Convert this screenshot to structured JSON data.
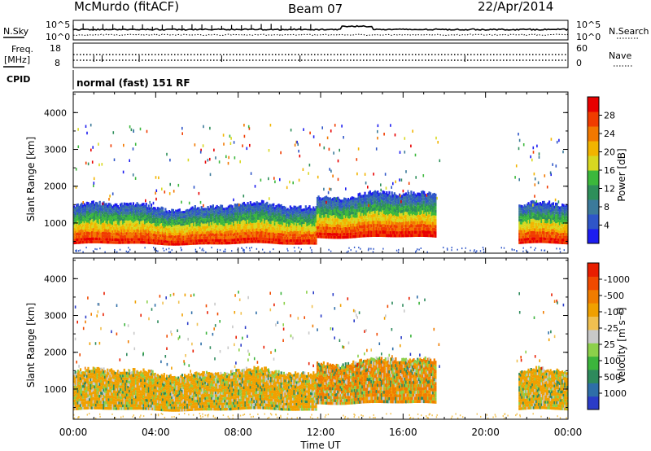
{
  "header": {
    "station": "McMurdo (fitACF)",
    "beam": "Beam 07",
    "date": "22/Apr/2014"
  },
  "noise_panel": {
    "left_label": "N.Sky",
    "right_label": "N.Search",
    "left_ticks": [
      "10^5",
      "10^0"
    ],
    "right_ticks": [
      "10^5",
      "10^0"
    ]
  },
  "freq_panel": {
    "left_label": "Freq.",
    "left_unit": "[MHz]",
    "left_ticks": [
      "18",
      "8"
    ],
    "right_label": "Nave",
    "right_ticks": [
      "60",
      "0"
    ]
  },
  "cpid": {
    "label": "CPID",
    "program": "normal (fast) 151 RF"
  },
  "chart_data": [
    {
      "type": "heatmap",
      "name": "power",
      "ylabel": "Slant Range [km]",
      "ylim": [
        180,
        4560
      ],
      "yticks": [
        "1000",
        "2000",
        "3000",
        "4000"
      ],
      "xlim_hours": [
        0,
        24
      ],
      "colorbar": {
        "label": "Power [dB]",
        "ticks": [
          "4",
          "8",
          "12",
          "16",
          "20",
          "24",
          "28"
        ],
        "bands": [
          {
            "color": "#1c1cf0"
          },
          {
            "color": "#2f56c8"
          },
          {
            "color": "#3c7a9a"
          },
          {
            "color": "#2e8f5a"
          },
          {
            "color": "#3cb83c"
          },
          {
            "color": "#d8d820"
          },
          {
            "color": "#f2b400"
          },
          {
            "color": "#f27800"
          },
          {
            "color": "#f03c00"
          },
          {
            "color": "#e80000"
          }
        ]
      },
      "echo_regions": [
        {
          "t0": 0.0,
          "t1": 11.8,
          "r0": 420,
          "r1": 1400,
          "dominant": "#e80000"
        },
        {
          "t0": 11.8,
          "t1": 17.6,
          "r0": 600,
          "r1": 1700,
          "dominant": "#2f56c8"
        },
        {
          "t0": 21.6,
          "t1": 24.0,
          "r0": 420,
          "r1": 1400,
          "dominant": "#f03c00"
        }
      ]
    },
    {
      "type": "heatmap",
      "name": "velocity",
      "ylabel": "Slant Range [km]",
      "ylim": [
        180,
        4560
      ],
      "yticks": [
        "1000",
        "2000",
        "3000",
        "4000"
      ],
      "xlim_hours": [
        0,
        24
      ],
      "xticks": [
        "00:00",
        "04:00",
        "08:00",
        "12:00",
        "16:00",
        "20:00",
        "00:00"
      ],
      "xlabel": "Time UT",
      "colorbar": {
        "label": "Velocity [m s⁻¹]",
        "ticks": [
          "1000",
          "500",
          "100",
          "25",
          "-25",
          "-100",
          "-500",
          "-1000"
        ],
        "bands": [
          {
            "color": "#2a3cc8"
          },
          {
            "color": "#2e6ea8"
          },
          {
            "color": "#2e8a5c"
          },
          {
            "color": "#3cb43c"
          },
          {
            "color": "#8cd04a"
          },
          {
            "color": "#c8c8c8"
          },
          {
            "color": "#f0c050"
          },
          {
            "color": "#f0a000"
          },
          {
            "color": "#f07c00"
          },
          {
            "color": "#f04a00"
          },
          {
            "color": "#e81e00"
          }
        ]
      },
      "echo_regions": [
        {
          "t0": 0.0,
          "t1": 11.8,
          "r0": 420,
          "r1": 1400,
          "dominant": "#f0a000"
        },
        {
          "t0": 11.8,
          "t1": 17.6,
          "r0": 600,
          "r1": 1700,
          "dominant": "#f07c00"
        },
        {
          "t0": 21.6,
          "t1": 24.0,
          "r0": 420,
          "r1": 1400,
          "dominant": "#f0a000"
        }
      ]
    }
  ]
}
